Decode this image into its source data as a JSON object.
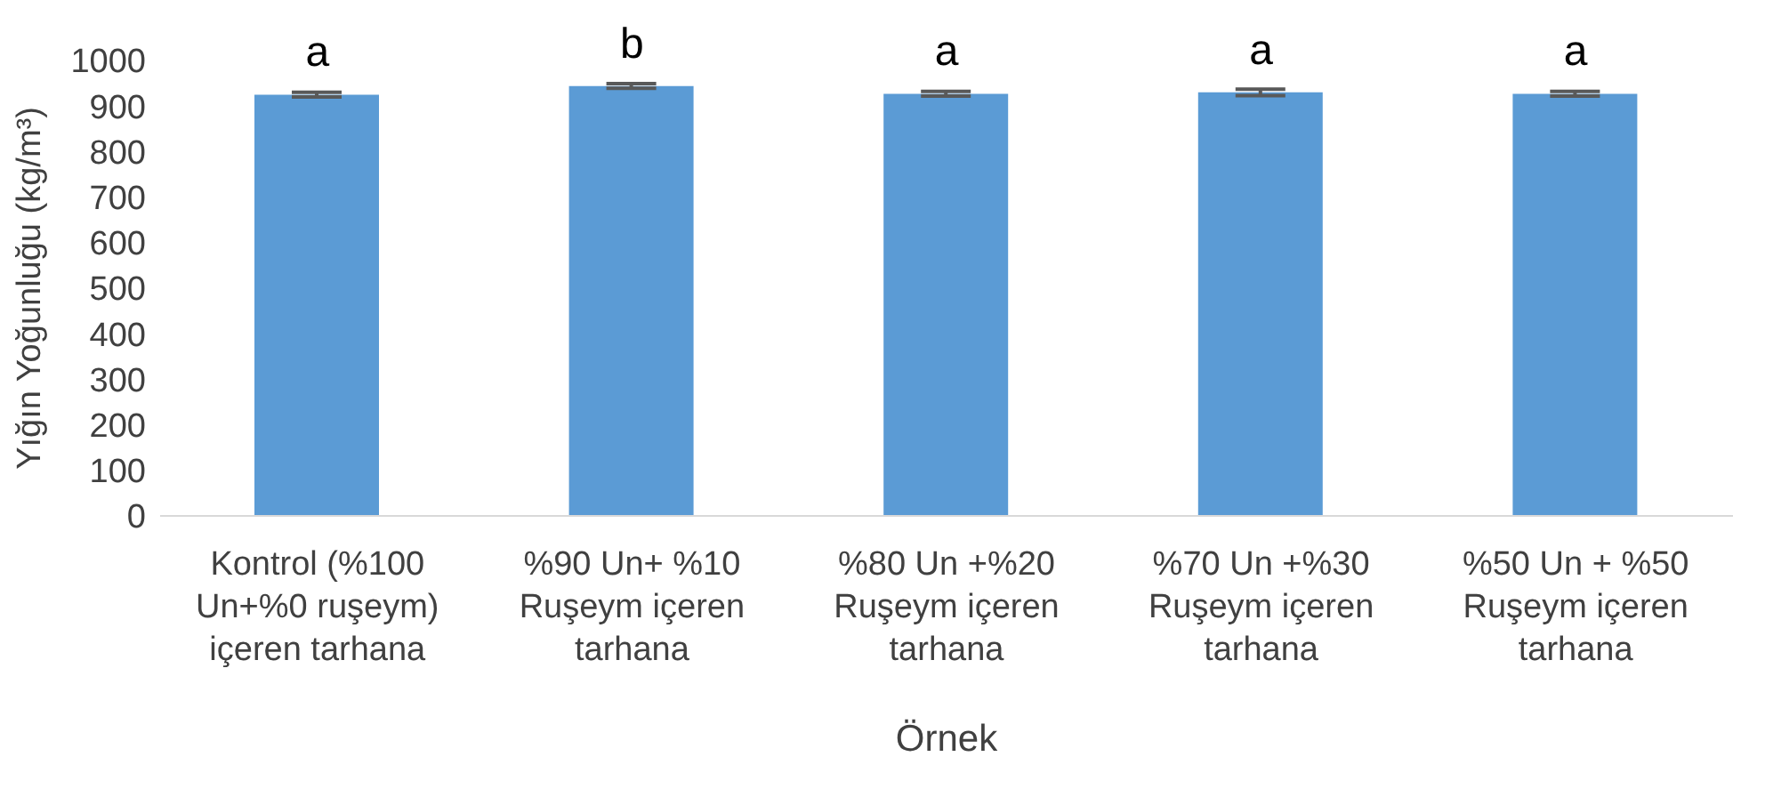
{
  "chart_data": {
    "type": "bar",
    "xlabel": "Örnek",
    "ylabel": "Yığın Yoğunluğu (kg/m³)",
    "categories": [
      "Kontrol (%100 Un+%0 ruşeym) içeren tarhana",
      "%90 Un+ %10 Ruşeym içeren tarhana",
      "%80 Un +%20 Ruşeym içeren tarhana",
      "%70 Un +%30 Ruşeym içeren tarhana",
      "%50 Un + %50 Ruşeym içeren tarhana"
    ],
    "values": [
      925,
      944,
      927,
      930,
      927
    ],
    "errors": [
      5,
      5,
      5,
      7,
      5
    ],
    "color": "#5b9bd5",
    "ylim": [
      0,
      1000
    ],
    "yticks": [
      0,
      100,
      200,
      300,
      400,
      500,
      600,
      700,
      800,
      900,
      1000
    ],
    "annotations": [
      {
        "text": "a",
        "x": "Kontrol (%100 Un+%0 ruşeym) içeren tarhana",
        "y": 925
      },
      {
        "text": "b",
        "x": "%90 Un+ %10 Ruşeym içeren tarhana",
        "y": 944
      },
      {
        "text": "a",
        "x": "%80 Un +%20 Ruşeym içeren tarhana",
        "y": 927
      },
      {
        "text": "a",
        "x": "%70 Un +%30 Ruşeym içeren tarhana",
        "y": 930
      },
      {
        "text": "a",
        "x": "%50 Un + %50 Ruşeym içeren tarhana",
        "y": 927
      }
    ]
  }
}
